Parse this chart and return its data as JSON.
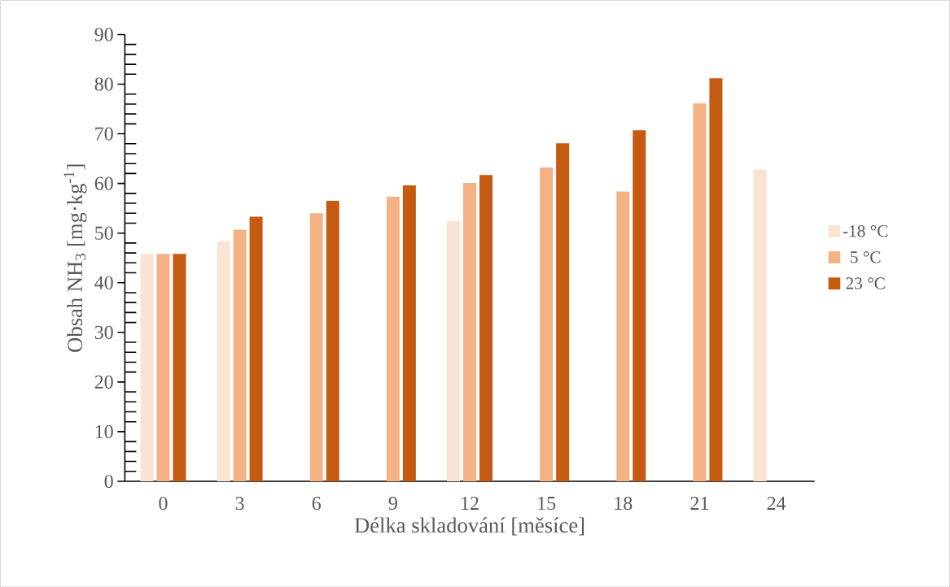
{
  "chart_data": {
    "type": "bar",
    "xlabel": "Délka skladování [měsíce]",
    "ylabel": "Obsah NH$_{3}$ [mg·kg$^{-1}$]",
    "categories": [
      "0",
      "3",
      "6",
      "9",
      "12",
      "15",
      "18",
      "21",
      "24"
    ],
    "series": [
      {
        "name": "-18 °C",
        "color": "#fbe3d4",
        "values": [
          45.8,
          48.3,
          null,
          null,
          52.4,
          null,
          null,
          null,
          62.8
        ]
      },
      {
        "name": "5 °C",
        "color": "#f4b183",
        "values": [
          45.8,
          50.7,
          54.0,
          57.3,
          60.1,
          63.2,
          58.4,
          76.1,
          null
        ]
      },
      {
        "name": "23 °C",
        "color": "#c55a11",
        "values": [
          45.8,
          53.3,
          56.5,
          59.6,
          61.7,
          68.1,
          70.7,
          81.2,
          null
        ]
      }
    ],
    "ylim": [
      0,
      90
    ],
    "yticks": [
      0,
      10,
      20,
      30,
      40,
      50,
      60,
      70,
      80,
      90
    ],
    "grid": false,
    "legend": "right"
  }
}
